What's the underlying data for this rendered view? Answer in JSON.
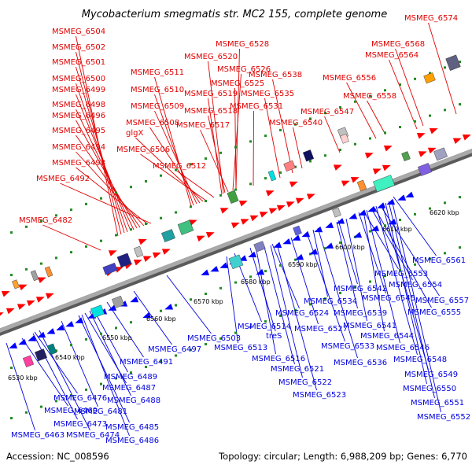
{
  "title": "Mycobacterium smegmatis str. MC2 155, complete genome",
  "footer": {
    "accession": "Accession: NC_008596",
    "summary": "Topology: circular; Length: 6,988,209 bp; Genes: 6,770"
  },
  "colors": {
    "forward_label": "#e00000",
    "reverse_label": "#0000e0",
    "backbone": "#999999",
    "dots": "#228b22"
  },
  "ticks": [
    "6530 kbp",
    "6540 kbp",
    "6550 kbp",
    "6560 kbp",
    "6570 kbp",
    "6580 kbp",
    "6590 kbp",
    "6600 kbp",
    "6610 kbp",
    "6620 kbp"
  ],
  "forward_labels": [
    "MSMEG_6574",
    "MSMEG_6504",
    "MSMEG_6502",
    "MSMEG_6501",
    "MSMEG_6500",
    "MSMEG_6499",
    "MSMEG_6498",
    "MSMEG_6496",
    "MSMEG_6495",
    "MSMEG_6494",
    "MSMEG_6493",
    "MSMEG_6492",
    "MSMEG_6482",
    "MSMEG_6528",
    "MSMEG_6520",
    "MSMEG_6511",
    "MSMEG_6526",
    "MSMEG_6510",
    "MSMEG_6519",
    "MSMEG_6525",
    "MSMEG_6509",
    "MSMEG_6518",
    "MSMEG_6508",
    "glgX",
    "MSMEG_6517",
    "MSMEG_6506",
    "MSMEG_6512",
    "MSMEG_6538",
    "MSMEG_6535",
    "MSMEG_6531",
    "MSMEG_6540",
    "MSMEG_6547",
    "MSMEG_6556",
    "MSMEG_6558",
    "MSMEG_6568",
    "MSMEG_6564"
  ],
  "reverse_labels": [
    "MSMEG_6561",
    "MSMEG_6553",
    "MSMEG_6554",
    "MSMEG_6557",
    "MSMEG_6555",
    "MSMEG_6542",
    "MSMEG_6545",
    "MSMEG_6534",
    "MSMEG_6539",
    "MSMEG_6541",
    "MSMEG_6524",
    "MSMEG_6527",
    "MSMEG_6544",
    "MSMEG_6546",
    "MSMEG_6503",
    "MSMEG_6514",
    "treS",
    "MSMEG_6533",
    "MSMEG_6497",
    "MSMEG_6513",
    "MSMEG_6491",
    "MSMEG_6516",
    "MSMEG_6536",
    "MSMEG_6548",
    "MSMEG_6521",
    "MSMEG_6549",
    "MSMEG_6489",
    "MSMEG_6522",
    "MSMEG_6550",
    "MSMEG_6476",
    "MSMEG_6487",
    "MSMEG_6523",
    "MSMEG_6551",
    "MSMEG_6469",
    "MSMEG_6488",
    "MSMEG_6481",
    "MSMEG_6552",
    "MSMEG_6473",
    "MSMEG_6485",
    "MSMEG_6463",
    "MSMEG_6474",
    "MSMEG_6486"
  ]
}
